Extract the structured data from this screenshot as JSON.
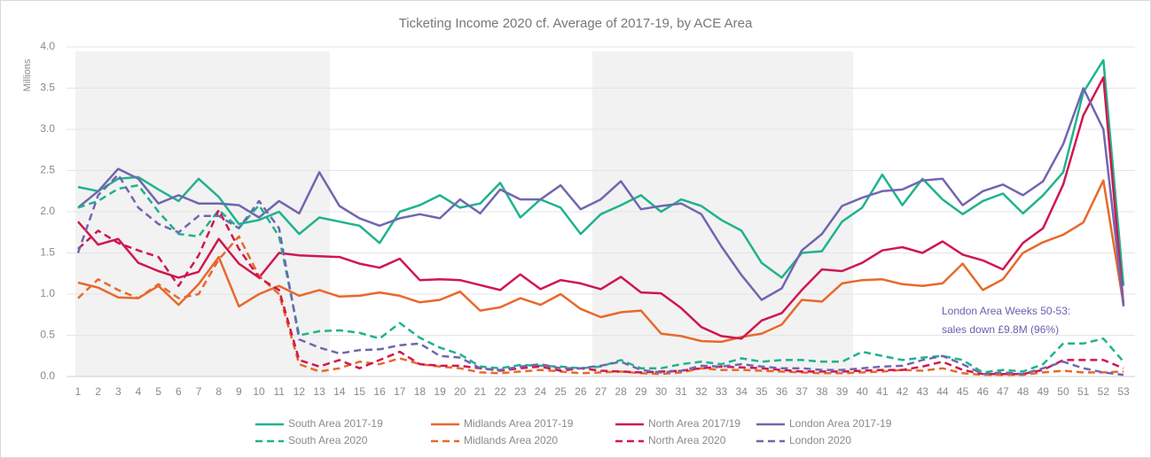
{
  "chart_data": {
    "type": "line",
    "title": "Ticketing Income 2020 cf. Average of 2017-19, by ACE Area",
    "y_label": "Millions",
    "annotation": [
      "London Area Weeks 50-53:",
      "sales down £9.8M (96%)"
    ],
    "x": [
      1,
      2,
      3,
      4,
      5,
      6,
      7,
      8,
      9,
      10,
      11,
      12,
      13,
      14,
      15,
      16,
      17,
      18,
      19,
      20,
      21,
      22,
      23,
      24,
      25,
      26,
      27,
      28,
      29,
      30,
      31,
      32,
      33,
      34,
      35,
      36,
      37,
      38,
      39,
      40,
      41,
      42,
      43,
      44,
      45,
      46,
      47,
      48,
      49,
      50,
      51,
      52,
      53
    ],
    "ylim": [
      0,
      4
    ],
    "yticks": [
      {
        "value": 0,
        "label": "0.0"
      },
      {
        "value": 0.5,
        "label": "0.5"
      },
      {
        "value": 1,
        "label": "1.0"
      },
      {
        "value": 1.5,
        "label": "1.5"
      },
      {
        "value": 2,
        "label": "2.0"
      },
      {
        "value": 2.5,
        "label": "2.5"
      },
      {
        "value": 3,
        "label": "3.0"
      },
      {
        "value": 3.5,
        "label": "3.5"
      },
      {
        "value": 4,
        "label": "4.0"
      }
    ],
    "grid": true,
    "legend": "bottom",
    "series": [
      {
        "name": "South Area 2017-19",
        "color": "#1fb38e",
        "dashed": false,
        "values": [
          2.3,
          2.25,
          2.4,
          2.42,
          2.27,
          2.13,
          2.4,
          2.18,
          1.85,
          1.9,
          2.0,
          1.73,
          1.93,
          1.88,
          1.83,
          1.62,
          2.0,
          2.08,
          2.2,
          2.05,
          2.1,
          2.35,
          1.93,
          2.15,
          2.05,
          1.73,
          1.97,
          2.08,
          2.2,
          2.0,
          2.15,
          2.07,
          1.9,
          1.77,
          1.38,
          1.2,
          1.5,
          1.52,
          1.88,
          2.05,
          2.45,
          2.08,
          2.4,
          2.15,
          1.97,
          2.13,
          2.22,
          1.98,
          2.2,
          2.48,
          3.45,
          3.84,
          1.1
        ]
      },
      {
        "name": "Midlands Area 2017-19",
        "color": "#e8692b",
        "dashed": false,
        "values": [
          1.14,
          1.08,
          0.96,
          0.95,
          1.1,
          0.87,
          1.12,
          1.45,
          0.85,
          1.0,
          1.1,
          0.98,
          1.05,
          0.97,
          0.98,
          1.02,
          0.98,
          0.9,
          0.93,
          1.03,
          0.8,
          0.84,
          0.95,
          0.87,
          1.0,
          0.82,
          0.72,
          0.78,
          0.8,
          0.52,
          0.49,
          0.43,
          0.42,
          0.48,
          0.52,
          0.63,
          0.93,
          0.91,
          1.13,
          1.17,
          1.18,
          1.12,
          1.1,
          1.13,
          1.37,
          1.05,
          1.18,
          1.5,
          1.63,
          1.72,
          1.87,
          2.38,
          0.87
        ]
      },
      {
        "name": "North Area 2017/19",
        "color": "#d0174f",
        "dashed": false,
        "values": [
          1.88,
          1.6,
          1.67,
          1.38,
          1.28,
          1.2,
          1.27,
          1.67,
          1.37,
          1.2,
          1.5,
          1.47,
          1.46,
          1.45,
          1.37,
          1.32,
          1.43,
          1.17,
          1.18,
          1.17,
          1.11,
          1.05,
          1.24,
          1.06,
          1.17,
          1.13,
          1.06,
          1.21,
          1.02,
          1.01,
          0.83,
          0.6,
          0.49,
          0.46,
          0.68,
          0.77,
          1.05,
          1.3,
          1.28,
          1.38,
          1.53,
          1.57,
          1.5,
          1.64,
          1.48,
          1.41,
          1.3,
          1.62,
          1.8,
          2.33,
          3.17,
          3.63,
          0.87
        ]
      },
      {
        "name": "London Area 2017-19",
        "color": "#7166b0",
        "dashed": false,
        "values": [
          2.05,
          2.25,
          2.52,
          2.4,
          2.1,
          2.2,
          2.1,
          2.1,
          2.08,
          1.93,
          2.13,
          1.98,
          2.48,
          2.07,
          1.92,
          1.83,
          1.92,
          1.97,
          1.92,
          2.15,
          1.98,
          2.27,
          2.15,
          2.15,
          2.32,
          2.03,
          2.15,
          2.37,
          2.03,
          2.07,
          2.1,
          1.97,
          1.58,
          1.23,
          0.93,
          1.07,
          1.53,
          1.73,
          2.07,
          2.17,
          2.25,
          2.27,
          2.38,
          2.4,
          2.08,
          2.25,
          2.33,
          2.2,
          2.37,
          2.82,
          3.5,
          3.0,
          0.85
        ]
      },
      {
        "name": "South Area 2020",
        "color": "#1fb38e",
        "dashed": true,
        "values": [
          2.05,
          2.13,
          2.28,
          2.32,
          2.0,
          1.73,
          1.7,
          2.02,
          1.8,
          2.08,
          1.7,
          0.5,
          0.55,
          0.56,
          0.53,
          0.46,
          0.65,
          0.47,
          0.35,
          0.27,
          0.12,
          0.1,
          0.14,
          0.13,
          0.12,
          0.1,
          0.12,
          0.2,
          0.1,
          0.1,
          0.15,
          0.18,
          0.15,
          0.22,
          0.18,
          0.2,
          0.2,
          0.18,
          0.18,
          0.3,
          0.25,
          0.2,
          0.23,
          0.25,
          0.2,
          0.05,
          0.08,
          0.06,
          0.15,
          0.4,
          0.4,
          0.46,
          0.18
        ]
      },
      {
        "name": "Midlands Area 2020",
        "color": "#e8692b",
        "dashed": true,
        "values": [
          0.95,
          1.18,
          1.05,
          0.95,
          1.12,
          0.95,
          1.0,
          1.42,
          1.7,
          1.22,
          1.0,
          0.15,
          0.06,
          0.1,
          0.18,
          0.15,
          0.22,
          0.15,
          0.12,
          0.1,
          0.05,
          0.04,
          0.06,
          0.08,
          0.06,
          0.04,
          0.05,
          0.06,
          0.04,
          0.03,
          0.05,
          0.1,
          0.08,
          0.08,
          0.07,
          0.06,
          0.05,
          0.04,
          0.04,
          0.05,
          0.06,
          0.08,
          0.07,
          0.1,
          0.04,
          0.02,
          0.02,
          0.02,
          0.05,
          0.07,
          0.05,
          0.05,
          0.06
        ]
      },
      {
        "name": "North Area 2020",
        "color": "#d0174f",
        "dashed": true,
        "values": [
          1.55,
          1.77,
          1.62,
          1.53,
          1.45,
          1.1,
          1.47,
          2.02,
          1.55,
          1.2,
          1.05,
          0.2,
          0.12,
          0.2,
          0.1,
          0.2,
          0.3,
          0.15,
          0.13,
          0.13,
          0.1,
          0.07,
          0.1,
          0.12,
          0.07,
          0.1,
          0.07,
          0.06,
          0.05,
          0.06,
          0.07,
          0.1,
          0.12,
          0.11,
          0.1,
          0.08,
          0.06,
          0.06,
          0.06,
          0.07,
          0.08,
          0.08,
          0.12,
          0.18,
          0.08,
          0.03,
          0.03,
          0.03,
          0.08,
          0.2,
          0.2,
          0.2,
          0.1
        ]
      },
      {
        "name": "London 2020",
        "color": "#7166b0",
        "dashed": true,
        "values": [
          1.5,
          2.2,
          2.45,
          2.05,
          1.85,
          1.75,
          1.95,
          1.95,
          1.8,
          2.13,
          1.8,
          0.45,
          0.35,
          0.28,
          0.32,
          0.33,
          0.38,
          0.4,
          0.25,
          0.23,
          0.1,
          0.08,
          0.12,
          0.15,
          0.1,
          0.1,
          0.13,
          0.18,
          0.08,
          0.05,
          0.07,
          0.13,
          0.12,
          0.15,
          0.12,
          0.1,
          0.1,
          0.08,
          0.08,
          0.1,
          0.12,
          0.13,
          0.2,
          0.25,
          0.15,
          0.03,
          0.05,
          0.03,
          0.1,
          0.18,
          0.1,
          0.05,
          0.02
        ]
      }
    ]
  }
}
